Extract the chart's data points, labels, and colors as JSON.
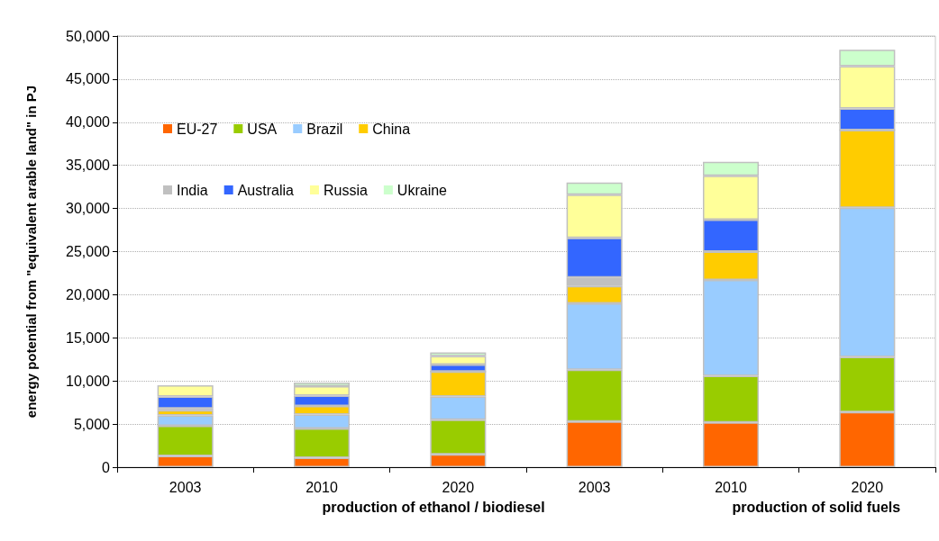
{
  "chart_data": {
    "type": "bar",
    "stacked": true,
    "ylabel": "energy potential from \"equivalent arable land\" in PJ",
    "categories": [
      "2003",
      "2010",
      "2020",
      "2003",
      "2010",
      "2020"
    ],
    "series": [
      {
        "name": "EU-27",
        "color": "#ff6600",
        "values": [
          1300,
          1100,
          1500,
          5300,
          5200,
          6400
        ]
      },
      {
        "name": "USA",
        "color": "#99cc00",
        "values": [
          3500,
          3400,
          4000,
          6000,
          5400,
          6400
        ]
      },
      {
        "name": "Brazil",
        "color": "#99ccff",
        "values": [
          1200,
          1600,
          2700,
          7700,
          11100,
          17300
        ]
      },
      {
        "name": "China",
        "color": "#ffcc00",
        "values": [
          600,
          1000,
          2900,
          2000,
          3300,
          9000
        ]
      },
      {
        "name": "India",
        "color": "#c0c0c0",
        "values": [
          200,
          0,
          0,
          1000,
          0,
          0
        ]
      },
      {
        "name": "Australia",
        "color": "#3366ff",
        "values": [
          1400,
          1200,
          800,
          4600,
          3700,
          2500
        ]
      },
      {
        "name": "Russia",
        "color": "#ffff99",
        "values": [
          1300,
          1100,
          1000,
          5000,
          5100,
          4900
        ]
      },
      {
        "name": "Ukraine",
        "color": "#ccffcc",
        "values": [
          null,
          400,
          400,
          1400,
          1600,
          1900
        ]
      }
    ],
    "ylim": [
      0,
      50000
    ],
    "yticks": [
      {
        "value": 0,
        "label": "0"
      },
      {
        "value": 5000,
        "label": "5,000"
      },
      {
        "value": 10000,
        "label": "10,000"
      },
      {
        "value": 15000,
        "label": "15,000"
      },
      {
        "value": 20000,
        "label": "20,000"
      },
      {
        "value": 25000,
        "label": "25,000"
      },
      {
        "value": 30000,
        "label": "30,000"
      },
      {
        "value": 35000,
        "label": "35,000"
      },
      {
        "value": 40000,
        "label": "40,000"
      },
      {
        "value": 45000,
        "label": "45,000"
      },
      {
        "value": 50000,
        "label": "50,000"
      }
    ],
    "grid": "y",
    "legend": "top left",
    "annotations": [
      "production of ethanol / biodiesel",
      "production of solid fuels"
    ]
  }
}
